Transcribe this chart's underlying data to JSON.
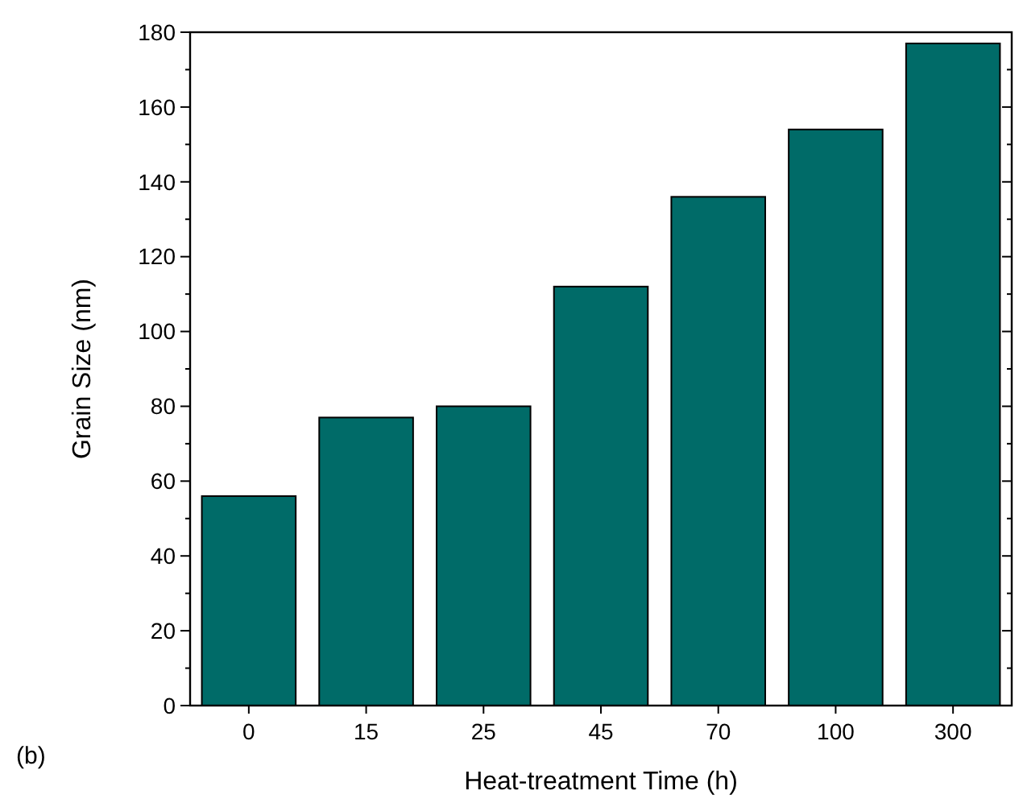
{
  "chart_data": {
    "type": "bar",
    "xlabel": "Heat-treatment Time (h)",
    "ylabel": "Grain Size (nm)",
    "categories": [
      "0",
      "15",
      "25",
      "45",
      "70",
      "100",
      "300"
    ],
    "values": [
      56,
      77,
      80,
      112,
      136,
      154,
      177
    ],
    "color": "#006b68",
    "ylim": [
      0,
      180
    ],
    "yticks": [
      0,
      {
        "value": 10,
        "label": null
      },
      20,
      {
        "value": 30,
        "label": null
      },
      40,
      {
        "value": 50,
        "label": null
      },
      60,
      {
        "value": 70,
        "label": null
      },
      80,
      {
        "value": 90,
        "label": null
      },
      100,
      {
        "value": 110,
        "label": null
      },
      120,
      {
        "value": 130,
        "label": null
      },
      140,
      {
        "value": 150,
        "label": null
      },
      160,
      {
        "value": 170,
        "label": null
      },
      180
    ],
    "annotations": [
      "(b)"
    ],
    "grid": false
  }
}
